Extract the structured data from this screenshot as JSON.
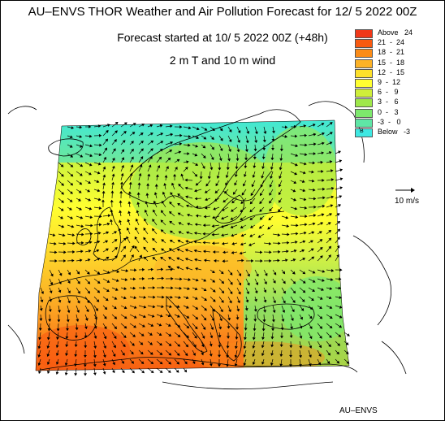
{
  "title": "AU–ENVS THOR Weather and Air Pollution Forecast for 12/ 5 2022  00Z",
  "subtitle": "Forecast started at 10/ 5 2022  00Z (+48h)",
  "field": "2 m T and 10 m wind",
  "credit": "AU–ENVS",
  "wind_scale": {
    "label": "10 m/s"
  },
  "legend": {
    "items": [
      {
        "label": "Above   24",
        "color": "#f03818"
      },
      {
        "label": "21  -  24",
        "color": "#f85a10"
      },
      {
        "label": "18  -  21",
        "color": "#fb8c18"
      },
      {
        "label": "15  -  18",
        "color": "#fcb226"
      },
      {
        "label": "12  -  15",
        "color": "#fde02a"
      },
      {
        "label": "9  -  12",
        "color": "#ffff30"
      },
      {
        "label": "6  -   9",
        "color": "#cfee3a"
      },
      {
        "label": "3  -   6",
        "color": "#9fe84a"
      },
      {
        "label": "0  -   3",
        "color": "#7de86c"
      },
      {
        "label": "-3  -   0",
        "color": "#5fe6a6"
      },
      {
        "label": "Below   -3",
        "color": "#3fe8e2",
        "marker": "B"
      }
    ]
  }
}
